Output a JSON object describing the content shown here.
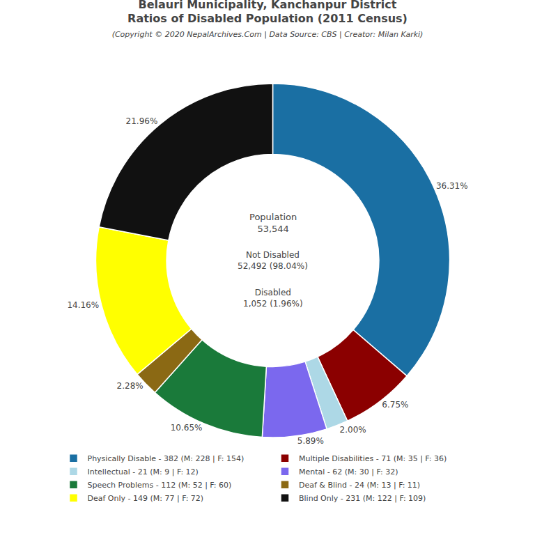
{
  "chart_data": {
    "type": "pie",
    "title": "Belauri Municipality, Kanchanpur District\nRatios of Disabled Population (2011 Census)",
    "subtitle": "(Copyright © 2020 NepalArchives.Com | Data Source: CBS | Creator: Milan Karki)",
    "categories": [
      "Physically Disable - 382 (M: 228 | F: 154)",
      "Multiple Disabilities - 71 (M: 35 | F: 36)",
      "Intellectual - 21 (M: 9 | F: 12)",
      "Mental - 62 (M: 30 | F: 32)",
      "Speech Problems - 112 (M: 52 | F: 60)",
      "Deaf & Blind - 24 (M: 13 | F: 11)",
      "Deaf Only - 149 (M: 77 | F: 72)",
      "Blind Only - 231 (M: 122 | F: 109)"
    ],
    "values": [
      36.31,
      6.75,
      2.0,
      5.89,
      10.65,
      2.28,
      14.16,
      21.96
    ],
    "value_labels": [
      "36.31%",
      "6.75%",
      "2.00%",
      "5.89%",
      "10.65%",
      "2.28%",
      "14.16%",
      "21.96%"
    ],
    "colors": [
      "#1a6fa3",
      "#8b0000",
      "#add8e6",
      "#7b68ee",
      "#1a7a3a",
      "#8b6914",
      "#ffff00",
      "#111111"
    ],
    "data_labels": true,
    "legend": "bottom",
    "annotations": [
      "Population\n53,544",
      "Not Disabled\n52,492 (98.04%)",
      "Disabled\n1,052 (1.96%)"
    ]
  }
}
